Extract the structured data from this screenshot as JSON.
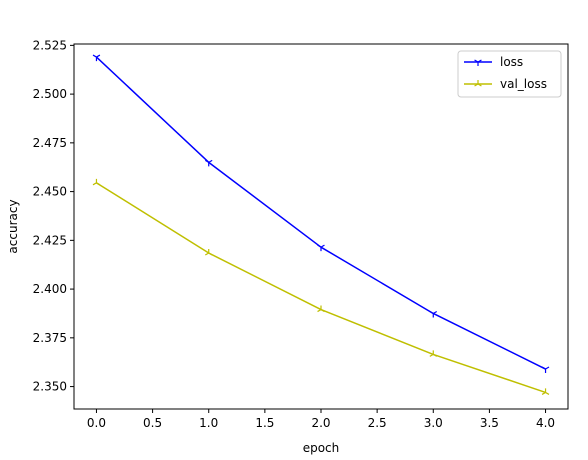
{
  "chart_data": {
    "type": "line",
    "title": "",
    "xlabel": "epoch",
    "ylabel": "accuracy",
    "x": [
      0.0,
      1.0,
      2.0,
      3.0,
      4.0
    ],
    "xlim": [
      -0.2,
      4.2
    ],
    "ylim": [
      2.3385,
      2.5257
    ],
    "xticks": [
      0.0,
      0.5,
      1.0,
      1.5,
      2.0,
      2.5,
      3.0,
      3.5,
      4.0
    ],
    "xtick_labels": [
      "0.0",
      "0.5",
      "1.0",
      "1.5",
      "2.0",
      "2.5",
      "3.0",
      "3.5",
      "4.0"
    ],
    "yticks": [
      2.35,
      2.375,
      2.4,
      2.425,
      2.45,
      2.475,
      2.5,
      2.525
    ],
    "ytick_labels": [
      "2.350",
      "2.375",
      "2.400",
      "2.425",
      "2.450",
      "2.475",
      "2.500",
      "2.525"
    ],
    "grid": false,
    "legend_position": "top-right",
    "series": [
      {
        "name": "loss",
        "color": "#0000ff",
        "marker": "tri_down",
        "values": [
          2.519,
          2.465,
          2.4215,
          2.3875,
          2.359
        ]
      },
      {
        "name": "val_loss",
        "color": "#bfbf00",
        "marker": "tri_up",
        "values": [
          2.4545,
          2.4185,
          2.3895,
          2.3665,
          2.347
        ]
      }
    ]
  }
}
